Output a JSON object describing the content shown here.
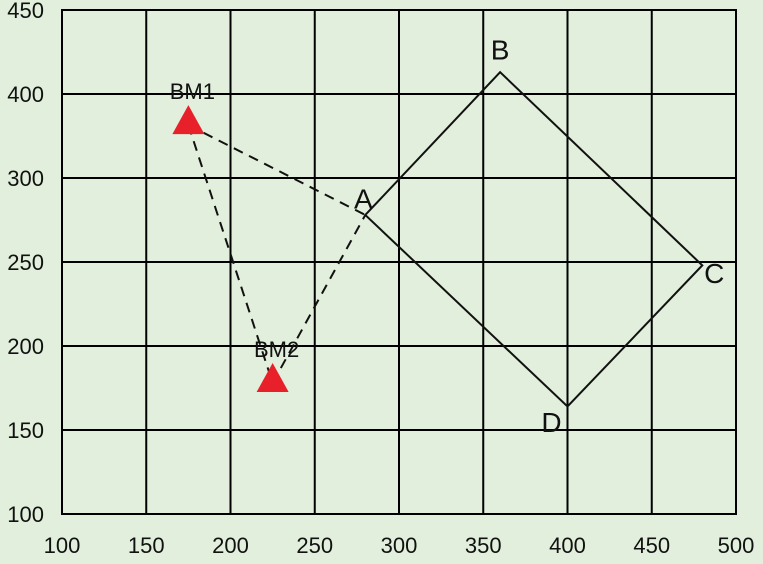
{
  "chart_data": {
    "type": "scatter",
    "title": "",
    "xlabel": "",
    "ylabel": "",
    "x_ticks": [
      "100",
      "150",
      "200",
      "250",
      "300",
      "350",
      "400",
      "450",
      "500"
    ],
    "y_ticks": [
      "100",
      "150",
      "200",
      "250",
      "300",
      "400",
      "450"
    ],
    "grid": true,
    "polygon": {
      "points": [
        {
          "label": "A",
          "x": 280,
          "y": 278
        },
        {
          "label": "B",
          "x": 360,
          "y": 413
        },
        {
          "label": "C",
          "x": 480,
          "y": 248
        },
        {
          "label": "D",
          "x": 400,
          "y": 164
        }
      ]
    },
    "benchmarks": [
      {
        "label": "BM1",
        "x": 175,
        "y": 363
      },
      {
        "label": "BM2",
        "x": 225,
        "y": 178
      }
    ],
    "dashed_links": [
      [
        "BM1",
        "A"
      ],
      [
        "BM1",
        "BM2"
      ],
      [
        "BM2",
        "A"
      ]
    ],
    "colors": {
      "background": "#e2efdc",
      "grid": "#000000",
      "benchmark_marker": "#e8202a",
      "lines": "#111111"
    }
  }
}
